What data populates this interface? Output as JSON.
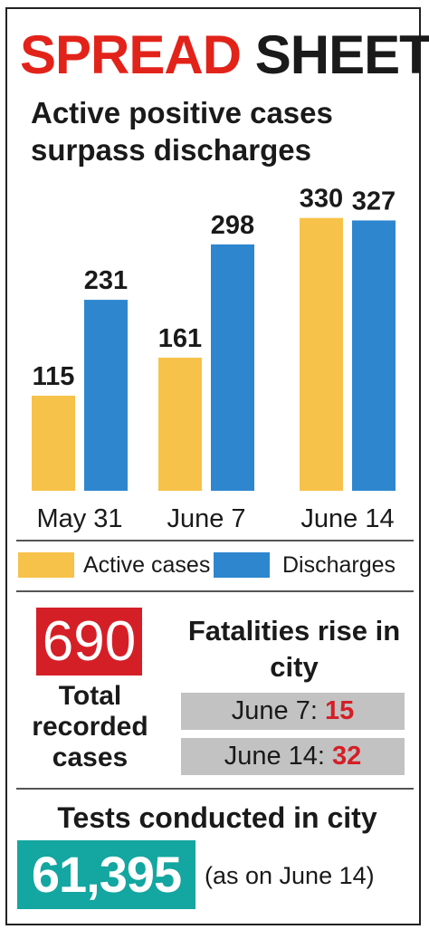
{
  "header": {
    "word1": "SPREAD",
    "word2": "SHEET"
  },
  "colors": {
    "active": "#f7c24a",
    "discharges": "#2e86cf",
    "accent_red": "#d51f26",
    "teal": "#14a6a0"
  },
  "chart_data": {
    "type": "bar",
    "title": "Active positive cases surpass discharges",
    "categories": [
      "May 31",
      "June 7",
      "June 14"
    ],
    "series": [
      {
        "name": "Active cases",
        "values": [
          115,
          161,
          330
        ]
      },
      {
        "name": "Discharges",
        "values": [
          231,
          298,
          327
        ]
      }
    ],
    "ylim": [
      0,
      340
    ],
    "legend": "bottom",
    "grid": false
  },
  "stats": {
    "total_value": "690",
    "total_label": "Total recorded cases",
    "fatalities_title": "Fatalities rise in city",
    "fatalities": [
      {
        "label": "June 7:",
        "value": "15"
      },
      {
        "label": "June 14:",
        "value": "32"
      }
    ],
    "tests_title": "Tests conducted in city",
    "tests_value": "61,395",
    "tests_note": "(as on June 14)"
  }
}
